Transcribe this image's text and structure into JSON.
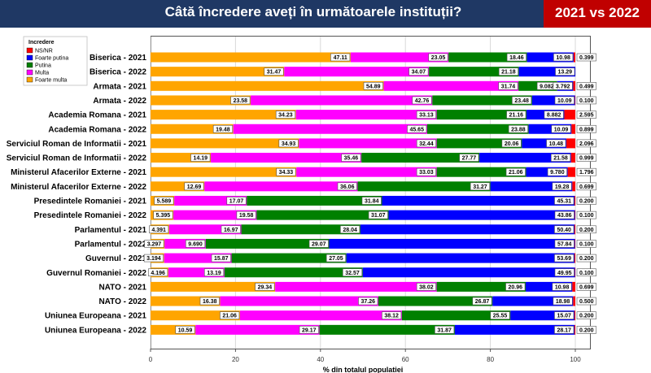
{
  "header": {
    "title": "Câtă încredere aveți în următoarele instituții?",
    "badge": "2021 vs 2022"
  },
  "colors": {
    "header_bg": "#1f3864",
    "badge_bg": "#c00000",
    "series": [
      "#ffa500",
      "#ff00ff",
      "#008000",
      "#0000ff",
      "#ff0000"
    ]
  },
  "chart_data": {
    "type": "bar",
    "orientation": "horizontal",
    "stacked": true,
    "title": "Câtă încredere aveți în următoarele instituții?",
    "xlabel": "% din totalul populatiei",
    "ylabel": "",
    "xlim": [
      0,
      100
    ],
    "xticks": [
      0,
      20,
      40,
      60,
      80,
      100
    ],
    "legend": {
      "title": "Incredere",
      "position": "top-left",
      "order": [
        "NS/NR",
        "Foarte putina",
        "Putina",
        "Multa",
        "Foarte multa"
      ]
    },
    "categories": [
      "Biserica - 2021",
      "Biserica - 2022",
      "Armata - 2021",
      "Armata - 2022",
      "Academia Romana - 2021",
      "Academia Romana - 2022",
      "Serviciul Roman de Informatii - 2021",
      "Serviciul Roman de Informatii - 2022",
      "Ministerul Afacerilor Externe - 2021",
      "Ministerul Afacerilor Externe - 2022",
      "Presedintele Romaniei - 2021",
      "Presedintele Romaniei - 2022",
      "Parlamentul - 2021",
      "Parlamentul - 2022",
      "Guvernul - 2021",
      "Guvernul Romaniei - 2022",
      "NATO - 2021",
      "NATO - 2022",
      "Uniunea Europeana - 2021",
      "Uniunea Europeana - 2022"
    ],
    "series": [
      {
        "name": "Foarte multa",
        "color": "#ffa500",
        "values": [
          47.11,
          31.47,
          54.89,
          23.58,
          34.23,
          19.48,
          34.93,
          14.19,
          34.33,
          12.69,
          5.589,
          5.395,
          4.391,
          3.297,
          3.194,
          4.196,
          29.34,
          16.38,
          21.06,
          10.59
        ],
        "labels": [
          "47.11",
          "31.47",
          "54.89",
          "23.58",
          "34.23",
          "19.48",
          "34.93",
          "14.19",
          "34.33",
          "12.69",
          "5.589",
          "5.395",
          "4.391",
          "3.297",
          "3.194",
          "4.196",
          "29.34",
          "16.38",
          "21.06",
          "10.59"
        ]
      },
      {
        "name": "Multa",
        "color": "#ff00ff",
        "values": [
          23.05,
          34.07,
          31.74,
          42.76,
          33.13,
          45.65,
          32.44,
          35.46,
          33.03,
          36.06,
          17.07,
          19.58,
          16.97,
          9.69,
          15.87,
          13.19,
          38.02,
          37.26,
          38.12,
          29.17
        ],
        "labels": [
          "23.05",
          "34.07",
          "31.74",
          "42.76",
          "33.13",
          "45.65",
          "32.44",
          "35.46",
          "33.03",
          "36.06",
          "17.07",
          "19.58",
          "16.97",
          "9.690",
          "15.87",
          "13.19",
          "38.02",
          "37.26",
          "38.12",
          "29.17"
        ]
      },
      {
        "name": "Putina",
        "color": "#008000",
        "values": [
          18.46,
          21.18,
          9.082,
          23.48,
          21.16,
          23.88,
          20.06,
          27.77,
          21.06,
          31.27,
          31.84,
          31.07,
          28.04,
          29.07,
          27.05,
          32.57,
          20.96,
          26.87,
          25.55,
          31.87
        ],
        "labels": [
          "18.46",
          "21.18",
          "9.082",
          "23.48",
          "21.16",
          "23.88",
          "20.06",
          "27.77",
          "21.06",
          "31.27",
          "31.84",
          "31.07",
          "28.04",
          "29.07",
          "27.05",
          "32.57",
          "20.96",
          "26.87",
          "25.55",
          "31.87"
        ]
      },
      {
        "name": "Foarte putina",
        "color": "#0000ff",
        "values": [
          10.98,
          13.29,
          3.792,
          10.09,
          8.882,
          10.09,
          10.48,
          21.58,
          9.78,
          19.28,
          45.31,
          43.86,
          50.4,
          57.84,
          53.69,
          49.95,
          10.98,
          18.98,
          15.07,
          28.17
        ],
        "labels": [
          "10.98",
          "13.29",
          "3.792",
          "10.09",
          "8.882",
          "10.09",
          "10.48",
          "21.58",
          "9.780",
          "19.28",
          "45.31",
          "43.86",
          "50.40",
          "57.84",
          "53.69",
          "49.95",
          "10.98",
          "18.98",
          "15.07",
          "28.17"
        ]
      },
      {
        "name": "NS/NR",
        "color": "#ff0000",
        "values": [
          0.399,
          0,
          0.499,
          0.1,
          2.595,
          0.899,
          2.096,
          0.999,
          1.796,
          0.699,
          0.2,
          0.1,
          0.2,
          0.1,
          0.2,
          0.1,
          0.699,
          0.5,
          0.2,
          0.2
        ],
        "labels": [
          "0.399",
          "",
          "0.499",
          "0.100",
          "2.595",
          "0.899",
          "2.096",
          "0.999",
          "1.796",
          "0.699",
          "0.200",
          "0.100",
          "0.200",
          "0.100",
          "0.200",
          "0.100",
          "0.699",
          "0.500",
          "0.200",
          "0.200"
        ]
      }
    ]
  }
}
